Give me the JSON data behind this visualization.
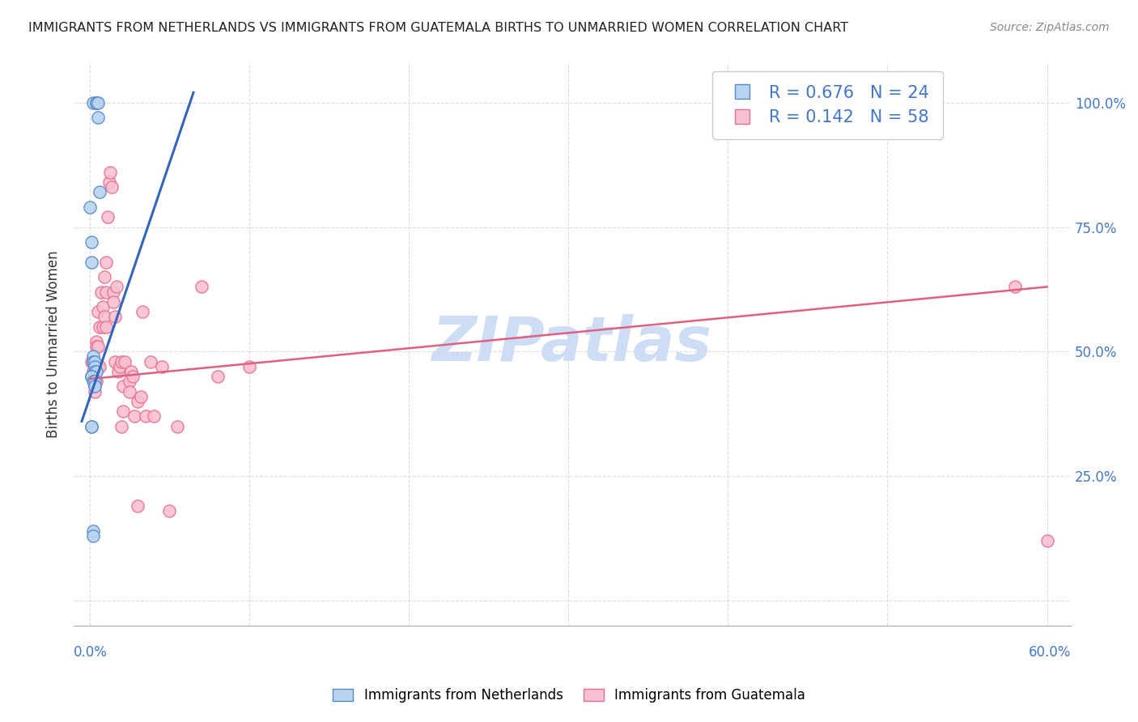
{
  "title": "IMMIGRANTS FROM NETHERLANDS VS IMMIGRANTS FROM GUATEMALA BIRTHS TO UNMARRIED WOMEN CORRELATION CHART",
  "source": "Source: ZipAtlas.com",
  "ylabel_label": "Births to Unmarried Women",
  "legend_label_blue": "Immigrants from Netherlands",
  "legend_label_pink": "Immigrants from Guatemala",
  "watermark": "ZIPatlas",
  "netherlands": {
    "R": 0.676,
    "N": 24,
    "fill_color": "#b8d4f0",
    "edge_color": "#5588cc",
    "line_color": "#3366bb",
    "scatter_x": [
      0.2,
      0.4,
      0.4,
      0.5,
      0.5,
      0.6,
      0.0,
      0.1,
      0.1,
      0.2,
      0.2,
      0.3,
      0.3,
      0.3,
      0.4,
      0.1,
      0.1,
      0.2,
      0.3,
      0.3,
      0.1,
      0.1,
      0.2,
      0.2
    ],
    "scatter_y": [
      100.0,
      100.0,
      100.0,
      100.0,
      97.0,
      82.0,
      79.0,
      72.0,
      68.0,
      49.0,
      48.0,
      48.0,
      47.0,
      46.0,
      46.0,
      45.0,
      45.0,
      44.0,
      44.0,
      43.0,
      35.0,
      35.0,
      14.0,
      13.0
    ],
    "trend_x": [
      -0.5,
      6.5
    ],
    "trend_y": [
      36.0,
      102.0
    ]
  },
  "guatemala": {
    "R": 0.142,
    "N": 58,
    "fill_color": "#f8c0d0",
    "edge_color": "#e87090",
    "line_color": "#e06080",
    "scatter_x": [
      0.1,
      0.2,
      0.2,
      0.3,
      0.3,
      0.3,
      0.4,
      0.4,
      0.4,
      0.5,
      0.5,
      0.5,
      0.6,
      0.6,
      0.7,
      0.8,
      0.8,
      0.9,
      0.9,
      1.0,
      1.0,
      1.0,
      1.1,
      1.2,
      1.3,
      1.4,
      1.5,
      1.5,
      1.6,
      1.6,
      1.7,
      1.8,
      1.9,
      2.0,
      2.0,
      2.1,
      2.1,
      2.2,
      2.5,
      2.5,
      2.6,
      2.7,
      2.8,
      3.0,
      3.0,
      3.2,
      3.3,
      3.5,
      3.8,
      4.0,
      4.5,
      5.0,
      5.5,
      7.0,
      8.0,
      10.0,
      58.0,
      60.0
    ],
    "scatter_y": [
      48.0,
      48.0,
      46.0,
      44.0,
      43.0,
      42.0,
      52.0,
      51.0,
      44.0,
      58.0,
      51.0,
      47.0,
      55.0,
      47.0,
      62.0,
      59.0,
      55.0,
      65.0,
      57.0,
      68.0,
      62.0,
      55.0,
      77.0,
      84.0,
      86.0,
      83.0,
      62.0,
      60.0,
      57.0,
      48.0,
      63.0,
      46.0,
      47.0,
      48.0,
      35.0,
      43.0,
      38.0,
      48.0,
      44.0,
      42.0,
      46.0,
      45.0,
      37.0,
      40.0,
      19.0,
      41.0,
      58.0,
      37.0,
      48.0,
      37.0,
      47.0,
      18.0,
      35.0,
      63.0,
      45.0,
      47.0,
      63.0,
      12.0
    ],
    "trend_x": [
      0.0,
      60.0
    ],
    "trend_y": [
      44.5,
      63.0
    ]
  },
  "xlim": [
    -1.0,
    61.5
  ],
  "ylim": [
    -5.0,
    108.0
  ],
  "xtick_vals": [
    0.0,
    10.0,
    20.0,
    30.0,
    40.0,
    50.0,
    60.0
  ],
  "ytick_vals": [
    0.0,
    25.0,
    50.0,
    75.0,
    100.0
  ],
  "ytick_labels_right": [
    "",
    "25.0%",
    "50.0%",
    "75.0%",
    "100.0%"
  ],
  "background_color": "#ffffff",
  "grid_color": "#dddddd",
  "axis_label_color": "#4477cc",
  "title_color": "#222222",
  "title_fontsize": 11.5,
  "source_fontsize": 10,
  "watermark_color": "#ccddf5",
  "watermark_fontsize": 55,
  "marker_size": 120
}
